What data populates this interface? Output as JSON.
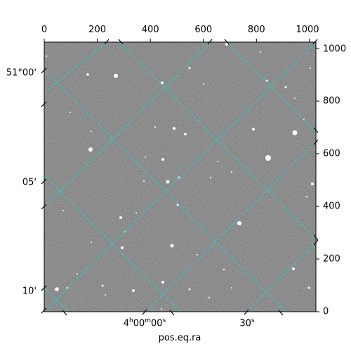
{
  "x_axis_top": {
    "ticks": [
      "0",
      "200",
      "400",
      "600",
      "800",
      "1000"
    ],
    "values": [
      0,
      200,
      400,
      600,
      800,
      1000
    ]
  },
  "y_axis_right": {
    "ticks": [
      "0",
      "200",
      "400",
      "600",
      "800",
      "1000"
    ],
    "values": [
      0,
      200,
      400,
      600,
      800,
      1000
    ]
  },
  "dec_axis_left": {
    "ticks": [
      "51°00'",
      "05'",
      "10'"
    ]
  },
  "ra_axis_bottom": {
    "ticks": [
      "4h00m00s",
      "30s"
    ],
    "tick1": {
      "h": "4",
      "hsup": "h",
      "m": "00",
      "msup": "m",
      "s": "00",
      "ssup": "s"
    },
    "tick2": {
      "s": "30",
      "ssup": "s"
    }
  },
  "xlabel": "pos.eq.ra",
  "image": {
    "range": [
      0,
      1024
    ],
    "grid_color": "#20d0d0",
    "background": "#6e6e6e",
    "grid": "on"
  }
}
